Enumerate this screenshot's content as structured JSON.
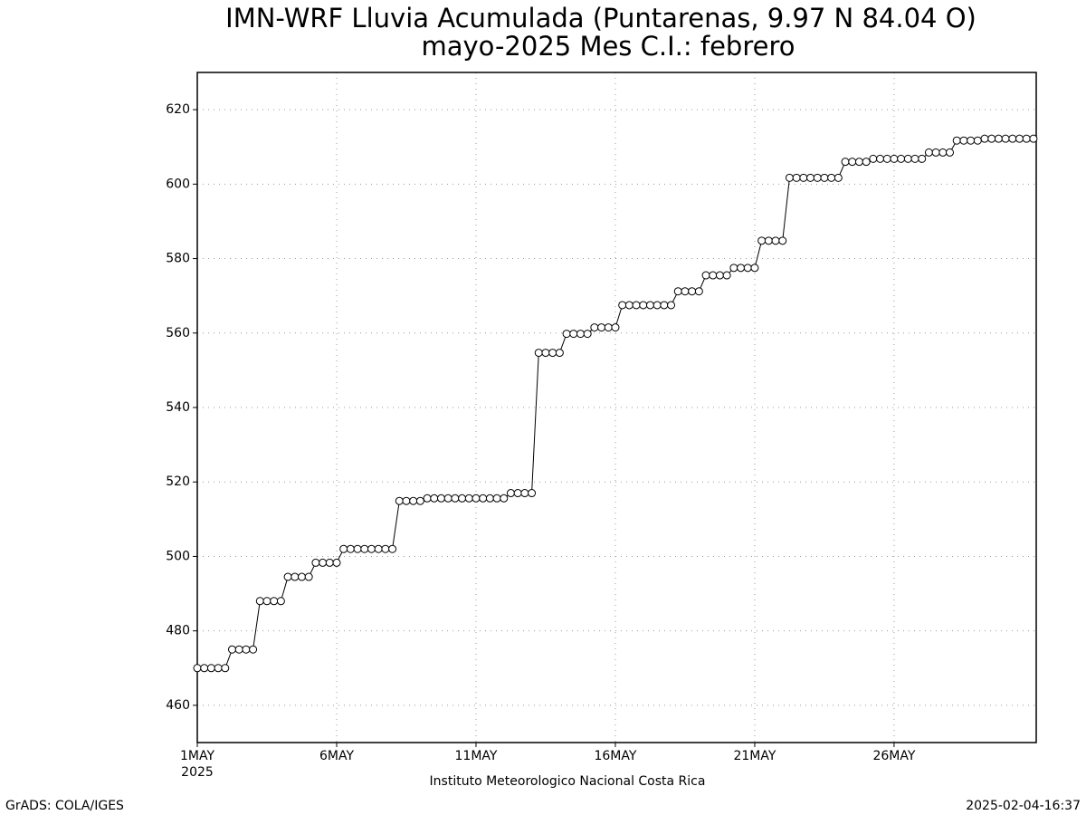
{
  "chart_data": {
    "type": "line",
    "title": "IMN-WRF  Lluvia Acumulada  (Puntarenas, 9.97  N 84.04  O)",
    "subtitle": "mayo-2025 Mes C.I.: febrero",
    "x_label": "Instituto Meteorologico Nacional Costa Rica",
    "x_sublabel": "2025",
    "footer_left": "GrADS: COLA/IGES",
    "footer_right": "2025-02-04-16:37",
    "grid": true,
    "color": "#000000",
    "marker": "circle",
    "xlim": [
      0,
      30.1
    ],
    "ylim": [
      450,
      630
    ],
    "xticks": [
      {
        "value": 0,
        "label": "1MAY"
      },
      {
        "value": 5,
        "label": "6MAY"
      },
      {
        "value": 10,
        "label": "11MAY"
      },
      {
        "value": 15,
        "label": "16MAY"
      },
      {
        "value": 20,
        "label": "21MAY"
      },
      {
        "value": 25,
        "label": "26MAY"
      }
    ],
    "yticks": [
      460,
      480,
      500,
      520,
      540,
      560,
      580,
      600,
      620
    ],
    "x": [
      0,
      0.25,
      0.5,
      0.75,
      1,
      1.25,
      1.5,
      1.75,
      2,
      2.25,
      2.5,
      2.75,
      3,
      3.25,
      3.5,
      3.75,
      4,
      4.25,
      4.5,
      4.75,
      5,
      5.25,
      5.5,
      5.75,
      6,
      6.25,
      6.5,
      6.75,
      7,
      7.25,
      7.5,
      7.75,
      8,
      8.25,
      8.5,
      8.75,
      9,
      9.25,
      9.5,
      9.75,
      10,
      10.25,
      10.5,
      10.75,
      11,
      11.25,
      11.5,
      11.75,
      12,
      12.25,
      12.5,
      12.75,
      13,
      13.25,
      13.5,
      13.75,
      14,
      14.25,
      14.5,
      14.75,
      15,
      15.25,
      15.5,
      15.75,
      16,
      16.25,
      16.5,
      16.75,
      17,
      17.25,
      17.5,
      17.75,
      18,
      18.25,
      18.5,
      18.75,
      19,
      19.25,
      19.5,
      19.75,
      20,
      20.25,
      20.5,
      20.75,
      21,
      21.25,
      21.5,
      21.75,
      22,
      22.25,
      22.5,
      22.75,
      23,
      23.25,
      23.5,
      23.75,
      24,
      24.25,
      24.5,
      24.75,
      25,
      25.25,
      25.5,
      25.75,
      26,
      26.25,
      26.5,
      26.75,
      27,
      27.25,
      27.5,
      27.75,
      28,
      28.25,
      28.5,
      28.75,
      29,
      29.25,
      29.5,
      29.75,
      30
    ],
    "values": [
      470,
      470,
      470,
      470,
      470,
      475,
      475,
      475,
      475,
      488,
      488,
      488,
      488,
      494.5,
      494.5,
      494.5,
      494.5,
      498.3,
      498.3,
      498.3,
      498.3,
      502,
      502,
      502,
      502,
      502,
      502,
      502,
      502,
      514.9,
      514.9,
      514.9,
      514.9,
      515.6,
      515.6,
      515.6,
      515.6,
      515.6,
      515.6,
      515.6,
      515.6,
      515.6,
      515.6,
      515.6,
      515.6,
      517,
      517,
      517,
      517,
      554.7,
      554.7,
      554.7,
      554.7,
      559.8,
      559.8,
      559.8,
      559.8,
      561.5,
      561.5,
      561.5,
      561.5,
      567.5,
      567.5,
      567.5,
      567.5,
      567.5,
      567.5,
      567.5,
      567.5,
      571.2,
      571.2,
      571.2,
      571.2,
      575.5,
      575.5,
      575.5,
      575.5,
      577.5,
      577.5,
      577.5,
      577.5,
      584.8,
      584.8,
      584.8,
      584.8,
      601.7,
      601.7,
      601.7,
      601.7,
      601.7,
      601.7,
      601.7,
      601.7,
      606,
      606,
      606,
      606,
      606.8,
      606.8,
      606.8,
      606.8,
      606.8,
      606.8,
      606.8,
      606.8,
      608.5,
      608.5,
      608.5,
      608.5,
      611.7,
      611.7,
      611.7,
      611.7,
      612.2,
      612.2,
      612.2,
      612.2,
      612.2,
      612.2,
      612.2,
      612.2
    ]
  }
}
